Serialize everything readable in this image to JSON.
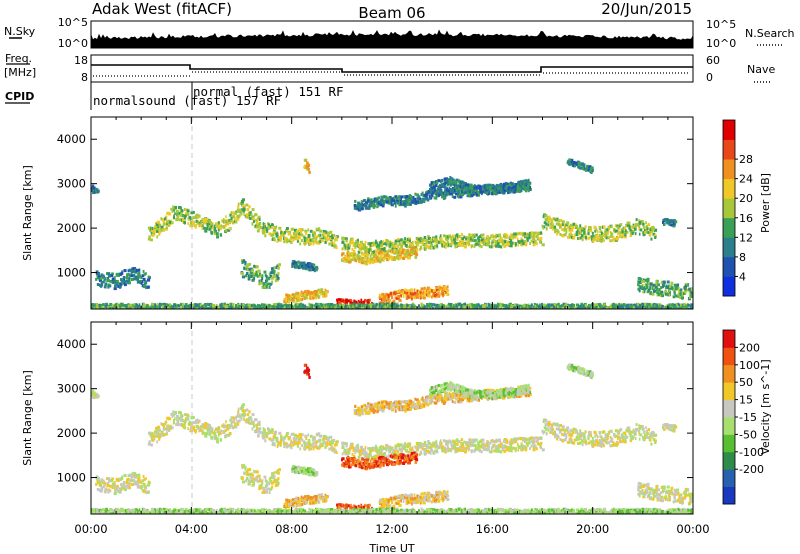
{
  "header": {
    "station": "Adak West (fitACF)",
    "beam": "Beam 06",
    "date": "20/Jun/2015"
  },
  "side_labels": {
    "nsky": "N.Sky",
    "nsearch": "N.Search",
    "freq_line1": "Freq.",
    "freq_line2": "[MHz]",
    "nave": "Nave",
    "cpid": "CPID"
  },
  "noise_axis": {
    "left_ticks": [
      "10^5",
      "10^0"
    ],
    "right_ticks": [
      "10^5",
      "10^0"
    ]
  },
  "freq_axis": {
    "left_ticks": [
      "18",
      "8"
    ],
    "right_ticks": [
      "60",
      "0"
    ]
  },
  "cpid_modes": [
    {
      "label": "normalsound (fast) 157 RF",
      "start_hour": 0,
      "end_hour": 4
    },
    {
      "label": "normal (fast) 151 RF",
      "start_hour": 4,
      "end_hour": 24
    }
  ],
  "chart_data": [
    {
      "type": "heatmap",
      "ylabel": "Slant Range [km]",
      "xlim": [
        0,
        24
      ],
      "ylim": [
        180,
        4500
      ],
      "yticks": [
        1000,
        2000,
        3000,
        4000
      ],
      "colorbar": {
        "label": "Power [dB]",
        "ticks": [
          "4",
          "8",
          "12",
          "16",
          "20",
          "24",
          "28"
        ],
        "colors": [
          "#1030e0",
          "#2050b0",
          "#2a7f8a",
          "#3aa055",
          "#a8c83a",
          "#f0c828",
          "#f09020",
          "#e84818",
          "#e00000"
        ]
      },
      "bands": [
        {
          "points": [
            [
              0,
              2880
            ],
            [
              0.3,
              2800
            ]
          ],
          "width": 70,
          "level": 2
        },
        {
          "points": [
            [
              2.3,
              1850
            ],
            [
              2.8,
              2050
            ],
            [
              3.3,
              2350
            ],
            [
              4.0,
              2200
            ],
            [
              5.0,
              1950
            ],
            [
              5.5,
              2150
            ],
            [
              6.0,
              2500
            ],
            [
              6.8,
              2000
            ],
            [
              7.5,
              1850
            ],
            [
              8.5,
              1800
            ],
            [
              9.2,
              1820
            ],
            [
              9.8,
              1700
            ]
          ],
          "width": 170,
          "level": 4
        },
        {
          "points": [
            [
              10,
              1650
            ],
            [
              11,
              1550
            ],
            [
              12,
              1600
            ],
            [
              13,
              1650
            ],
            [
              14,
              1700
            ],
            [
              15,
              1720
            ],
            [
              16,
              1700
            ],
            [
              17,
              1750
            ],
            [
              18,
              1760
            ]
          ],
          "width": 140,
          "level": 4
        },
        {
          "points": [
            [
              10,
              1350
            ],
            [
              11,
              1300
            ],
            [
              12,
              1400
            ],
            [
              13,
              1450
            ]
          ],
          "width": 110,
          "level": 5
        },
        {
          "points": [
            [
              10.5,
              2500
            ],
            [
              11.5,
              2600
            ],
            [
              12.5,
              2600
            ],
            [
              13.5,
              2750
            ],
            [
              14.5,
              2800
            ],
            [
              15.5,
              2850
            ],
            [
              16.5,
              2900
            ],
            [
              17.5,
              2950
            ]
          ],
          "width": 110,
          "level": 2
        },
        {
          "points": [
            [
              13.5,
              2950
            ],
            [
              14.3,
              3050
            ],
            [
              15.0,
              2900
            ],
            [
              16.0,
              2850
            ],
            [
              17.5,
              3000
            ]
          ],
          "width": 90,
          "level": 2
        },
        {
          "points": [
            [
              18.0,
              2150
            ],
            [
              19.0,
              1950
            ],
            [
              20.0,
              1850
            ],
            [
              21.0,
              1900
            ],
            [
              21.8,
              2050
            ],
            [
              22.5,
              1850
            ]
          ],
          "width": 170,
          "level": 4
        },
        {
          "points": [
            [
              22.8,
              2150
            ],
            [
              23.3,
              2100
            ]
          ],
          "width": 70,
          "level": 2
        },
        {
          "points": [
            [
              0.2,
              850
            ],
            [
              1.0,
              800
            ],
            [
              1.6,
              950
            ],
            [
              2.3,
              800
            ]
          ],
          "width": 170,
          "level": 2
        },
        {
          "points": [
            [
              6.0,
              1100
            ],
            [
              6.5,
              950
            ],
            [
              7.0,
              800
            ],
            [
              7.5,
              1050
            ]
          ],
          "width": 200,
          "level": 3
        },
        {
          "points": [
            [
              8.0,
              1200
            ],
            [
              9.0,
              1100
            ]
          ],
          "width": 70,
          "level": 2
        },
        {
          "points": [
            [
              7.7,
              400
            ],
            [
              8.6,
              500
            ],
            [
              9.4,
              550
            ]
          ],
          "width": 90,
          "level": 5
        },
        {
          "points": [
            [
              9.8,
              300
            ],
            [
              10.5,
              250
            ],
            [
              11.2,
              320
            ]
          ],
          "width": 110,
          "level": 8
        },
        {
          "points": [
            [
              11.5,
              400
            ],
            [
              12.5,
              500
            ],
            [
              13.5,
              550
            ],
            [
              14.2,
              600
            ]
          ],
          "width": 110,
          "level": 6
        },
        {
          "points": [
            [
              21.8,
              750
            ],
            [
              22.5,
              650
            ],
            [
              23.2,
              600
            ],
            [
              24,
              550
            ]
          ],
          "width": 170,
          "level": 3
        },
        {
          "points": [
            [
              0,
              220
            ],
            [
              6,
              220
            ],
            [
              12,
              220
            ],
            [
              18,
              220
            ],
            [
              24,
              220
            ]
          ],
          "width": 70,
          "level": 3
        },
        {
          "points": [
            [
              8.5,
              3450
            ],
            [
              8.7,
              3300
            ]
          ],
          "width": 100,
          "level": 5
        },
        {
          "points": [
            [
              19.0,
              3500
            ],
            [
              20.0,
              3300
            ]
          ],
          "width": 60,
          "level": 2
        }
      ]
    },
    {
      "type": "heatmap",
      "ylabel": "Slant Range [km]",
      "xlabel": "Time UT",
      "xlim": [
        0,
        24
      ],
      "ylim": [
        180,
        4500
      ],
      "yticks": [
        1000,
        2000,
        3000,
        4000
      ],
      "xticks": [
        "00:00",
        "04:00",
        "08:00",
        "12:00",
        "16:00",
        "20:00",
        "00:00"
      ],
      "colorbar": {
        "label": "Velocity [m s^-1]",
        "ticks": [
          "200",
          "100",
          "50",
          "15",
          "-15",
          "-50",
          "-100",
          "-200"
        ],
        "colors": [
          "#1838c0",
          "#2860b0",
          "#2e8c4a",
          "#58c030",
          "#a8e070",
          "#c8c8c0",
          "#f0c828",
          "#f09020",
          "#f05010",
          "#e01010"
        ]
      },
      "bands": [
        {
          "points": [
            [
              0,
              2880
            ],
            [
              0.3,
              2800
            ]
          ],
          "width": 70,
          "level": 5
        },
        {
          "points": [
            [
              2.3,
              1850
            ],
            [
              2.8,
              2050
            ],
            [
              3.3,
              2350
            ],
            [
              4.0,
              2200
            ],
            [
              5.0,
              1950
            ],
            [
              5.5,
              2150
            ],
            [
              6.0,
              2500
            ],
            [
              6.8,
              2000
            ],
            [
              7.5,
              1850
            ],
            [
              8.5,
              1800
            ],
            [
              9.2,
              1820
            ],
            [
              9.8,
              1700
            ]
          ],
          "width": 170,
          "level": 5
        },
        {
          "points": [
            [
              10,
              1650
            ],
            [
              11,
              1550
            ],
            [
              12,
              1600
            ],
            [
              13,
              1650
            ],
            [
              14,
              1700
            ],
            [
              15,
              1720
            ],
            [
              16,
              1700
            ],
            [
              17,
              1750
            ],
            [
              18,
              1760
            ]
          ],
          "width": 140,
          "level": 5
        },
        {
          "points": [
            [
              10,
              1350
            ],
            [
              11,
              1300
            ],
            [
              12,
              1400
            ],
            [
              13,
              1450
            ]
          ],
          "width": 110,
          "level": 8
        },
        {
          "points": [
            [
              10.5,
              2500
            ],
            [
              11.5,
              2600
            ],
            [
              12.5,
              2600
            ],
            [
              13.5,
              2750
            ],
            [
              14.5,
              2800
            ],
            [
              15.5,
              2850
            ],
            [
              16.5,
              2900
            ],
            [
              17.5,
              2950
            ]
          ],
          "width": 110,
          "level": 6
        },
        {
          "points": [
            [
              13.5,
              2950
            ],
            [
              14.3,
              3050
            ],
            [
              15.0,
              2900
            ],
            [
              16.0,
              2850
            ],
            [
              17.5,
              3000
            ]
          ],
          "width": 90,
          "level": 4
        },
        {
          "points": [
            [
              18.0,
              2150
            ],
            [
              19.0,
              1950
            ],
            [
              20.0,
              1850
            ],
            [
              21.0,
              1900
            ],
            [
              21.8,
              2050
            ],
            [
              22.5,
              1850
            ]
          ],
          "width": 170,
          "level": 5
        },
        {
          "points": [
            [
              22.8,
              2150
            ],
            [
              23.3,
              2100
            ]
          ],
          "width": 70,
          "level": 5
        },
        {
          "points": [
            [
              0.2,
              850
            ],
            [
              1.0,
              800
            ],
            [
              1.6,
              950
            ],
            [
              2.3,
              800
            ]
          ],
          "width": 170,
          "level": 5
        },
        {
          "points": [
            [
              6.0,
              1100
            ],
            [
              6.5,
              950
            ],
            [
              7.0,
              800
            ],
            [
              7.5,
              1050
            ]
          ],
          "width": 200,
          "level": 5
        },
        {
          "points": [
            [
              8.0,
              1200
            ],
            [
              9.0,
              1100
            ]
          ],
          "width": 70,
          "level": 4
        },
        {
          "points": [
            [
              7.7,
              400
            ],
            [
              8.6,
              500
            ],
            [
              9.4,
              550
            ]
          ],
          "width": 90,
          "level": 6
        },
        {
          "points": [
            [
              9.8,
              300
            ],
            [
              10.5,
              250
            ],
            [
              11.2,
              320
            ]
          ],
          "width": 110,
          "level": 8
        },
        {
          "points": [
            [
              11.5,
              400
            ],
            [
              12.5,
              500
            ],
            [
              13.5,
              550
            ],
            [
              14.2,
              600
            ]
          ],
          "width": 110,
          "level": 6
        },
        {
          "points": [
            [
              21.8,
              750
            ],
            [
              22.5,
              650
            ],
            [
              23.2,
              600
            ],
            [
              24,
              550
            ]
          ],
          "width": 170,
          "level": 5
        },
        {
          "points": [
            [
              0,
              220
            ],
            [
              6,
              220
            ],
            [
              12,
              220
            ],
            [
              18,
              220
            ],
            [
              24,
              220
            ]
          ],
          "width": 70,
          "level": 4
        },
        {
          "points": [
            [
              8.5,
              3450
            ],
            [
              8.7,
              3300
            ]
          ],
          "width": 100,
          "level": 9
        },
        {
          "points": [
            [
              19.0,
              3500
            ],
            [
              20.0,
              3300
            ]
          ],
          "width": 60,
          "level": 4
        }
      ]
    }
  ]
}
